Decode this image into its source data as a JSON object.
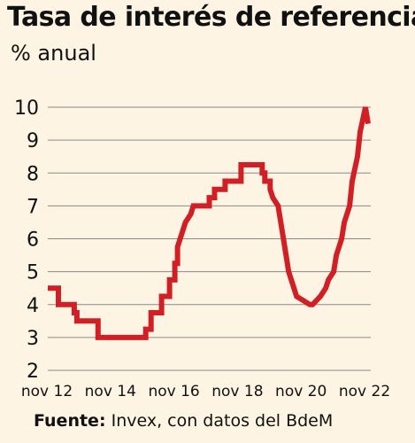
{
  "chart_data": {
    "type": "line",
    "title": "Tasa de interés de referencia",
    "subtitle": "% anual",
    "source_label": "Fuente:",
    "source_text": " Invex, con datos del BdeM",
    "line_color": "#d01f25",
    "grid_color": "#8a8a8a",
    "background_color": "#fdf4e3",
    "ylim": [
      2,
      10
    ],
    "yticks": [
      "2",
      "3",
      "4",
      "5",
      "6",
      "7",
      "8",
      "9",
      "10"
    ],
    "xticks": [
      "nov 12",
      "nov 14",
      "nov 16",
      "nov 18",
      "nov 20",
      "nov 22"
    ],
    "grid": true,
    "series": [
      {
        "values": [
          [
            "2012-11",
            4.5
          ],
          [
            "2013-03",
            4.5
          ],
          [
            "2013-03",
            4.0
          ],
          [
            "2013-09",
            4.0
          ],
          [
            "2013-09",
            3.75
          ],
          [
            "2013-10",
            3.75
          ],
          [
            "2013-10",
            3.5
          ],
          [
            "2014-06",
            3.5
          ],
          [
            "2014-06",
            3.0
          ],
          [
            "2015-12",
            3.0
          ],
          [
            "2015-12",
            3.25
          ],
          [
            "2016-02",
            3.25
          ],
          [
            "2016-02",
            3.75
          ],
          [
            "2016-06",
            3.75
          ],
          [
            "2016-06",
            4.25
          ],
          [
            "2016-09",
            4.25
          ],
          [
            "2016-09",
            4.75
          ],
          [
            "2016-11",
            4.75
          ],
          [
            "2016-11",
            5.25
          ],
          [
            "2016-12",
            5.25
          ],
          [
            "2016-12",
            5.75
          ],
          [
            "2017-02",
            6.25
          ],
          [
            "2017-03",
            6.5
          ],
          [
            "2017-05",
            6.75
          ],
          [
            "2017-06",
            7.0
          ],
          [
            "2017-12",
            7.0
          ],
          [
            "2017-12",
            7.25
          ],
          [
            "2018-02",
            7.25
          ],
          [
            "2018-02",
            7.5
          ],
          [
            "2018-06",
            7.5
          ],
          [
            "2018-06",
            7.75
          ],
          [
            "2018-12",
            7.75
          ],
          [
            "2018-12",
            8.25
          ],
          [
            "2019-08",
            8.25
          ],
          [
            "2019-08",
            8.0
          ],
          [
            "2019-09",
            8.0
          ],
          [
            "2019-09",
            7.75
          ],
          [
            "2019-11",
            7.75
          ],
          [
            "2019-11",
            7.5
          ],
          [
            "2019-12",
            7.25
          ],
          [
            "2020-02",
            7.0
          ],
          [
            "2020-03",
            6.5
          ],
          [
            "2020-04",
            6.0
          ],
          [
            "2020-05",
            5.5
          ],
          [
            "2020-06",
            5.0
          ],
          [
            "2020-08",
            4.5
          ],
          [
            "2020-09",
            4.25
          ],
          [
            "2021-02",
            4.0
          ],
          [
            "2021-03",
            4.0
          ],
          [
            "2021-06",
            4.25
          ],
          [
            "2021-08",
            4.5
          ],
          [
            "2021-09",
            4.75
          ],
          [
            "2021-11",
            5.0
          ],
          [
            "2021-12",
            5.5
          ],
          [
            "2022-02",
            6.0
          ],
          [
            "2022-03",
            6.5
          ],
          [
            "2022-05",
            7.0
          ],
          [
            "2022-06",
            7.75
          ],
          [
            "2022-08",
            8.5
          ],
          [
            "2022-09",
            9.25
          ],
          [
            "2022-11",
            10.0
          ],
          [
            "2022-12",
            9.5
          ]
        ]
      }
    ]
  }
}
